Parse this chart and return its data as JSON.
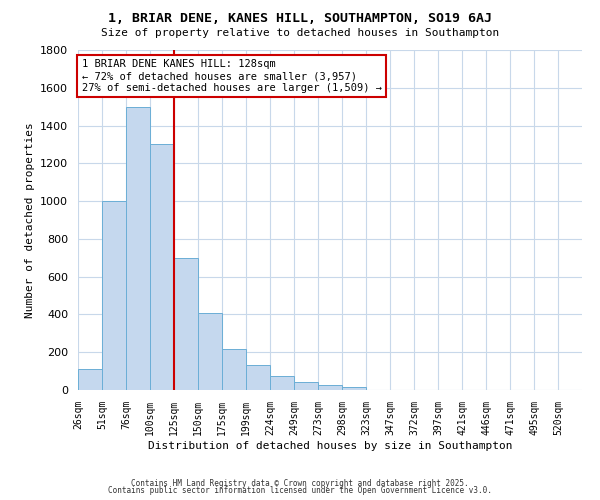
{
  "title": "1, BRIAR DENE, KANES HILL, SOUTHAMPTON, SO19 6AJ",
  "subtitle": "Size of property relative to detached houses in Southampton",
  "xlabel": "Distribution of detached houses by size in Southampton",
  "ylabel": "Number of detached properties",
  "bar_values": [
    110,
    1000,
    1500,
    1300,
    700,
    410,
    215,
    135,
    75,
    40,
    25,
    15,
    0,
    0,
    0,
    0,
    0,
    0,
    0,
    0,
    0
  ],
  "bin_labels": [
    "26sqm",
    "51sqm",
    "76sqm",
    "100sqm",
    "125sqm",
    "150sqm",
    "175sqm",
    "199sqm",
    "224sqm",
    "249sqm",
    "273sqm",
    "298sqm",
    "323sqm",
    "347sqm",
    "372sqm",
    "397sqm",
    "421sqm",
    "446sqm",
    "471sqm",
    "495sqm",
    "520sqm"
  ],
  "bar_color": "#c5d8ee",
  "bar_edge_color": "#6baed6",
  "vline_x": 4,
  "vline_color": "#cc0000",
  "annotation_text": "1 BRIAR DENE KANES HILL: 128sqm\n← 72% of detached houses are smaller (3,957)\n27% of semi-detached houses are larger (1,509) →",
  "annotation_box_facecolor": "#ffffff",
  "annotation_box_edgecolor": "#cc0000",
  "ylim": [
    0,
    1800
  ],
  "yticks": [
    0,
    200,
    400,
    600,
    800,
    1000,
    1200,
    1400,
    1600,
    1800
  ],
  "footer1": "Contains HM Land Registry data © Crown copyright and database right 2025.",
  "footer2": "Contains public sector information licensed under the Open Government Licence v3.0.",
  "background_color": "#ffffff",
  "grid_color": "#c8d8ea",
  "title_fontsize": 9.5,
  "subtitle_fontsize": 8,
  "ylabel_fontsize": 8,
  "xlabel_fontsize": 8,
  "tick_fontsize": 7,
  "footer_fontsize": 5.5,
  "annotation_fontsize": 7.5
}
